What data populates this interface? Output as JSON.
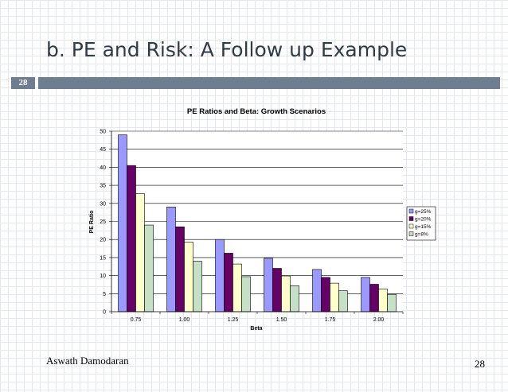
{
  "slide": {
    "title": "b. PE and Risk: A Follow up Example",
    "badge_number": "28",
    "footer_author": "Aswath Damodaran",
    "page_number": "28"
  },
  "chart_data": {
    "type": "bar",
    "title": "PE Ratios and Beta: Growth Scenarios",
    "xlabel": "Beta",
    "ylabel": "PE Ratio",
    "categories": [
      "0.75",
      "1.00",
      "1.25",
      "1.50",
      "1.75",
      "2.00"
    ],
    "ylim": [
      0,
      50
    ],
    "yticks": [
      "0",
      "5",
      "10",
      "15",
      "20",
      "25",
      "30",
      "35",
      "40",
      "45",
      "50"
    ],
    "grid": true,
    "legend_position": "right",
    "series": [
      {
        "name": "g=25%",
        "color": "#9999ff",
        "values": [
          49,
          29,
          20,
          14.8,
          11.7,
          9.5
        ]
      },
      {
        "name": "g=20%",
        "color": "#660066",
        "values": [
          40.5,
          23.5,
          16.2,
          12,
          9.5,
          7.6
        ]
      },
      {
        "name": "g=15%",
        "color": "#ffffcc",
        "values": [
          32.7,
          19.3,
          13.2,
          9.9,
          7.9,
          6.3
        ]
      },
      {
        "name": "g=8%",
        "color": "#c6e0c6",
        "values": [
          24,
          14,
          9.7,
          7.2,
          5.8,
          4.8
        ]
      }
    ]
  }
}
